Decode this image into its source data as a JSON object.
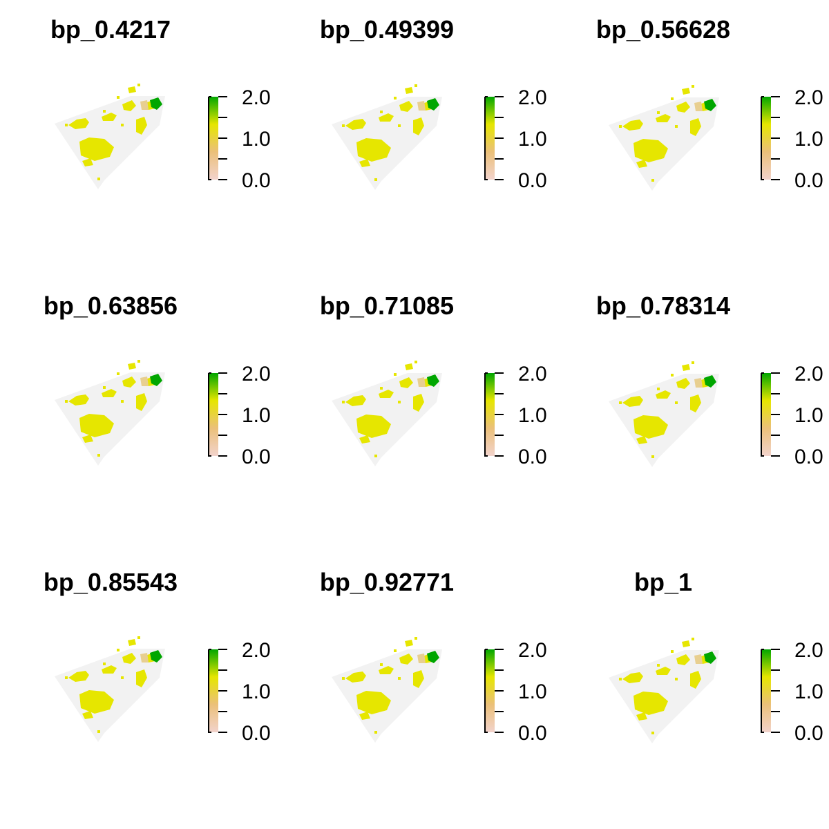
{
  "legend": {
    "tick_labels": [
      "2.0",
      "1.0",
      "0.0"
    ],
    "ticks": [
      2.0,
      1.0,
      0.0
    ],
    "range": [
      0.0,
      2.0
    ],
    "colors": [
      "#f2d3cc",
      "#ebc07a",
      "#e6e600",
      "#00a600"
    ],
    "background_color": "#f2f2f2",
    "low_class_color": "#e6e600",
    "high_class_color": "#00a600",
    "intermediate_color": "#e8cf90"
  },
  "panels": [
    {
      "title": "bp_0.4217"
    },
    {
      "title": "bp_0.49399"
    },
    {
      "title": "bp_0.56628"
    },
    {
      "title": "bp_0.63856"
    },
    {
      "title": "bp_0.71085"
    },
    {
      "title": "bp_0.78314"
    },
    {
      "title": "bp_0.85543"
    },
    {
      "title": "bp_0.92771"
    },
    {
      "title": "bp_1"
    }
  ]
}
